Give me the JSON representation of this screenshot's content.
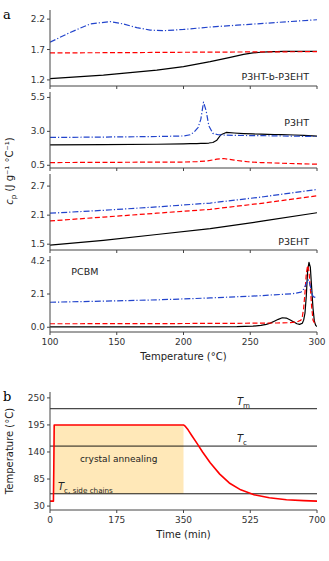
{
  "chart_data": [
    {
      "type": "line",
      "title": "P3HT-b-P3EHT",
      "ylabel": "cp (J g⁻¹ °C⁻¹)",
      "annotations": [
        "a"
      ],
      "xlim": [
        100,
        300
      ],
      "ylim": [
        1.1,
        2.35
      ],
      "xticks": [
        100,
        150,
        200,
        250,
        300
      ],
      "yticks": [
        1.2,
        1.7,
        2.2
      ],
      "tick_labels": "y",
      "series": [
        {
          "color": "black",
          "line_style": "solid",
          "x": [
            100,
            120,
            140,
            160,
            180,
            200,
            220,
            235,
            245,
            252,
            258,
            263,
            267,
            270,
            275,
            280,
            290,
            300
          ],
          "values": [
            1.22,
            1.25,
            1.28,
            1.32,
            1.36,
            1.42,
            1.5,
            1.57,
            1.62,
            1.645,
            1.655,
            1.66,
            1.665,
            1.667,
            1.668,
            1.668,
            1.669,
            1.67
          ]
        },
        {
          "color": "red",
          "line_style": "dashed",
          "x": [
            100,
            150,
            200,
            250,
            300
          ],
          "values": [
            1.645,
            1.648,
            1.655,
            1.66,
            1.665
          ]
        },
        {
          "color": "#2244CC",
          "line_style": "dashdot",
          "x": [
            100,
            115,
            130,
            145,
            155,
            165,
            175,
            185,
            200,
            220,
            240,
            260,
            280,
            300
          ],
          "values": [
            1.82,
            1.98,
            2.12,
            2.16,
            2.12,
            2.06,
            2.02,
            2.01,
            2.03,
            2.07,
            2.1,
            2.13,
            2.16,
            2.19
          ]
        }
      ]
    },
    {
      "type": "line",
      "title": "P3HT",
      "xlim": [
        100,
        300
      ],
      "ylim": [
        0.3,
        5.9
      ],
      "xticks": [
        100,
        150,
        200,
        250,
        300
      ],
      "yticks": [
        0.5,
        {
          "value": 3.0,
          "label": "3.0"
        },
        5.5
      ],
      "tick_labels": "y",
      "series": [
        {
          "color": "black",
          "line_style": "solid",
          "x": [
            100,
            140,
            180,
            200,
            205,
            210,
            213,
            216,
            219,
            222,
            225,
            228,
            232,
            238,
            245,
            252,
            258,
            263,
            268,
            273,
            278,
            283,
            290,
            300
          ],
          "values": [
            2.0,
            2.02,
            2.05,
            2.08,
            2.09,
            2.1,
            2.11,
            2.12,
            2.14,
            2.18,
            2.35,
            2.75,
            2.92,
            2.88,
            2.84,
            2.81,
            2.79,
            2.78,
            2.77,
            2.76,
            2.75,
            2.73,
            2.7,
            2.65
          ]
        },
        {
          "color": "red",
          "line_style": "dashed",
          "x": [
            100,
            150,
            200,
            210,
            218,
            225,
            230,
            238,
            248,
            258,
            268,
            280,
            300
          ],
          "values": [
            0.7,
            0.72,
            0.74,
            0.77,
            0.82,
            0.95,
            1.0,
            0.88,
            0.76,
            0.7,
            0.67,
            0.63,
            0.58
          ]
        },
        {
          "color": "#2244CC",
          "line_style": "dashdot",
          "x": [
            100,
            140,
            180,
            200,
            205,
            208,
            211,
            213,
            215,
            217,
            219,
            222,
            226,
            232,
            240,
            260,
            280,
            300
          ],
          "values": [
            2.55,
            2.58,
            2.62,
            2.66,
            2.75,
            2.95,
            3.3,
            3.9,
            5.15,
            4.5,
            3.4,
            2.85,
            2.75,
            2.72,
            2.7,
            2.68,
            2.65,
            2.62
          ]
        }
      ]
    },
    {
      "type": "line",
      "title": "P3EHT",
      "xlim": [
        100,
        300
      ],
      "ylim": [
        1.38,
        2.95
      ],
      "xticks": [
        100,
        150,
        200,
        250,
        300
      ],
      "yticks": [
        1.5,
        2.1,
        2.7
      ],
      "tick_labels": "y",
      "series": [
        {
          "color": "black",
          "line_style": "solid",
          "x": [
            100,
            140,
            180,
            220,
            260,
            300
          ],
          "values": [
            1.48,
            1.58,
            1.7,
            1.82,
            1.98,
            2.15
          ]
        },
        {
          "color": "red",
          "line_style": "dashed",
          "x": [
            100,
            140,
            180,
            220,
            260,
            300
          ],
          "values": [
            1.98,
            2.06,
            2.14,
            2.22,
            2.35,
            2.5
          ]
        },
        {
          "color": "#2244CC",
          "line_style": "dashdot",
          "x": [
            100,
            140,
            180,
            220,
            260,
            300
          ],
          "values": [
            2.14,
            2.2,
            2.27,
            2.35,
            2.48,
            2.63
          ]
        }
      ]
    },
    {
      "type": "line",
      "title": "PCBM",
      "xlabel": "Temperature (°C)",
      "xlim": [
        100,
        300
      ],
      "ylim": [
        -0.3,
        4.5
      ],
      "xticks": [
        100,
        150,
        200,
        250,
        300
      ],
      "yticks": [
        {
          "value": 0.0,
          "label": "0.0"
        },
        2.1,
        4.2
      ],
      "series": [
        {
          "color": "black",
          "line_style": "solid",
          "x": [
            100,
            180,
            240,
            252,
            258,
            262,
            265,
            268,
            271,
            274,
            277,
            280,
            283,
            285,
            287,
            289,
            290,
            291,
            292,
            293,
            294,
            295,
            296,
            297,
            298,
            299,
            300
          ],
          "values": [
            0.02,
            0.02,
            0.04,
            0.07,
            0.12,
            0.18,
            0.26,
            0.38,
            0.5,
            0.6,
            0.58,
            0.46,
            0.32,
            0.22,
            0.18,
            0.25,
            0.45,
            0.9,
            2.0,
            3.6,
            4.1,
            3.8,
            2.5,
            1.2,
            0.4,
            0.12,
            0.05
          ]
        },
        {
          "color": "red",
          "line_style": "dashed",
          "x": [
            100,
            180,
            240,
            270,
            280,
            285,
            288,
            289,
            290,
            291,
            292,
            293,
            294,
            295,
            296,
            297,
            298,
            299,
            300
          ],
          "values": [
            0.22,
            0.23,
            0.25,
            0.27,
            0.29,
            0.33,
            0.45,
            0.65,
            1.2,
            2.2,
            3.4,
            3.9,
            3.5,
            2.5,
            1.3,
            0.45,
            0.28,
            0.22,
            0.2
          ]
        },
        {
          "color": "#2244CC",
          "line_style": "dashdot",
          "x": [
            100,
            140,
            180,
            220,
            255,
            268,
            275,
            282,
            288,
            290,
            292,
            293,
            294,
            295,
            296,
            297,
            298,
            299,
            300
          ],
          "values": [
            1.58,
            1.65,
            1.73,
            1.85,
            1.98,
            2.05,
            2.08,
            2.12,
            2.22,
            2.4,
            2.75,
            3.0,
            2.95,
            2.6,
            2.2,
            1.95,
            1.9,
            1.88,
            1.87
          ]
        }
      ]
    },
    {
      "type": "line",
      "xlabel": "Time (min)",
      "ylabel": "Temperature (°C)",
      "annotations": [
        "b"
      ],
      "xlim": [
        0,
        700
      ],
      "ylim": [
        22,
        262
      ],
      "xticks": [
        0,
        175,
        350,
        525,
        700
      ],
      "yticks": [
        30,
        85,
        140,
        195,
        250
      ],
      "x": [
        0,
        4,
        9,
        10,
        11,
        350,
        355,
        362,
        372,
        385,
        400,
        420,
        445,
        470,
        500,
        535,
        575,
        620,
        665,
        700
      ],
      "series": [
        {
          "color": "red",
          "line_style": "solid",
          "values": [
            40,
            40,
            40,
            110,
            195,
            195,
            192,
            185,
            173,
            158,
            140,
            118,
            95,
            77,
            63,
            53,
            47,
            43,
            41,
            40
          ]
        }
      ],
      "hlines": [
        {
          "value": 228,
          "label": "Tm"
        },
        {
          "value": 152,
          "label": "Tc"
        },
        {
          "value": 55,
          "label": "Tc, side chains"
        }
      ],
      "shaded": {
        "x": [
          10,
          350
        ],
        "y": [
          55,
          195
        ],
        "color": "#FFE0A0",
        "label": "crystal annealing"
      }
    }
  ]
}
